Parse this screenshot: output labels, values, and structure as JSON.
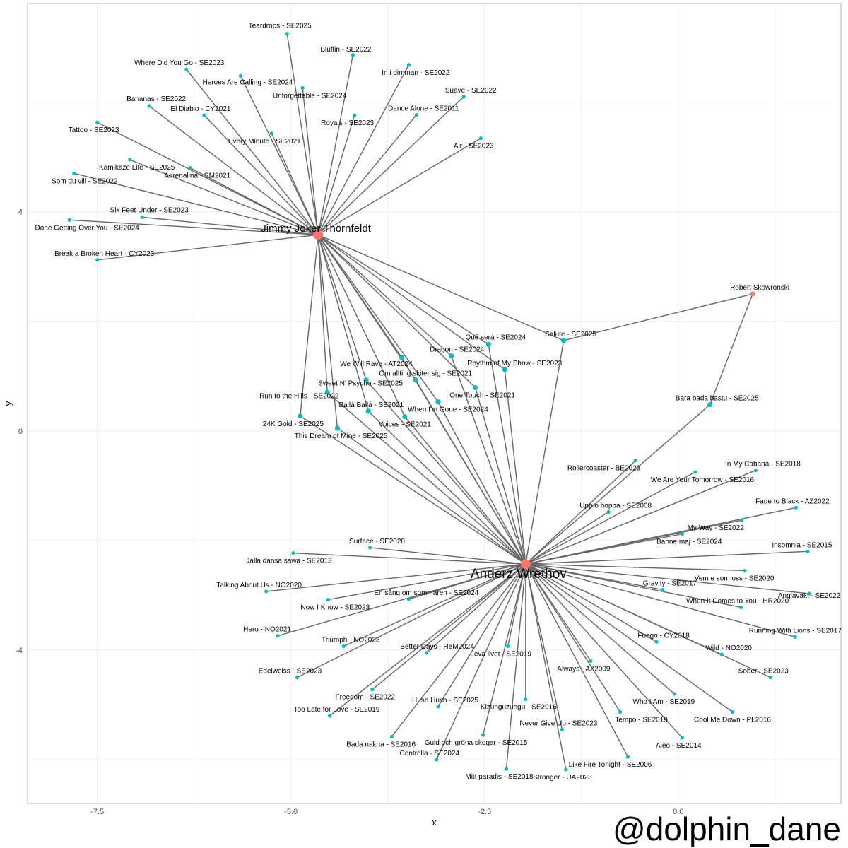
{
  "chart_data": {
    "type": "scatter",
    "subtype": "network graph",
    "title": "",
    "xlabel": "x",
    "ylabel": "y",
    "xlim": [
      -8.4,
      2.1
    ],
    "ylim": [
      -6.8,
      7.8
    ],
    "x_ticks": [
      {
        "value": -7.5,
        "label": "-7.5"
      },
      {
        "value": -5,
        "label": "-5.0"
      },
      {
        "value": -2.5,
        "label": "-2.5"
      },
      {
        "value": 0,
        "label": "0.0"
      }
    ],
    "y_ticks": [
      {
        "value": -4,
        "label": "-4"
      },
      {
        "value": 0,
        "label": "0"
      },
      {
        "value": 4,
        "label": "4"
      }
    ],
    "grid": true,
    "colors": {
      "hub": "#f8766d",
      "song": "#00bfc4",
      "edge": "#666666",
      "grid": "#ebebeb",
      "panel_border": "#b3b3b3"
    },
    "hubs": [
      {
        "id": "JJT",
        "name": "Jimmy Joker Thörnfeldt",
        "x": -4.65,
        "y": 3.58,
        "size": "large",
        "label_dx": -3,
        "label_dy": -4,
        "font": 15
      },
      {
        "id": "AW",
        "name": "Anderz Wrethov",
        "x": -1.97,
        "y": -2.43,
        "size": "large",
        "label_dx": -10,
        "label_dy": 20,
        "font": 19
      },
      {
        "id": "RS",
        "name": "Robert Skowronski",
        "x": 0.96,
        "y": 2.5,
        "size": "small",
        "label_dx": 10,
        "label_dy": -6,
        "font": 10
      }
    ],
    "songs": [
      {
        "label": "Teardrops - SE2025",
        "x": -5.05,
        "y": 7.25,
        "link": [
          "JJT"
        ],
        "label_dx": -10,
        "label_dy": -8
      },
      {
        "label": "Bluffin - SE2022",
        "x": -4.2,
        "y": 6.86,
        "link": [
          "JJT"
        ],
        "label_dx": -10,
        "label_dy": -5
      },
      {
        "label": "In i dimman - SE2022",
        "x": -3.48,
        "y": 6.68,
        "link": [
          "JJT"
        ],
        "label_dx": 10,
        "label_dy": 14
      },
      {
        "label": "Where Did You Go - SE2023",
        "x": -6.35,
        "y": 6.6,
        "link": [
          "JJT"
        ],
        "label_dx": -10,
        "label_dy": -6
      },
      {
        "label": "Heroes Are Calling - SE2024",
        "x": -5.65,
        "y": 6.48,
        "link": [
          "JJT"
        ],
        "label_dx": 10,
        "label_dy": 12
      },
      {
        "label": "Unforgettable - SE2024",
        "x": -4.85,
        "y": 6.26,
        "link": [
          "JJT"
        ],
        "label_dx": 10,
        "label_dy": 14
      },
      {
        "label": "Suave - SE2022",
        "x": -2.77,
        "y": 6.1,
        "link": [
          "JJT"
        ],
        "label_dx": 10,
        "label_dy": -6
      },
      {
        "label": "Bananas - SE2022",
        "x": -6.83,
        "y": 5.93,
        "link": [
          "JJT"
        ],
        "label_dx": 10,
        "label_dy": -7
      },
      {
        "label": "Dance Alone - SE2011",
        "x": -3.38,
        "y": 5.77,
        "link": [
          "JJT"
        ],
        "label_dx": 10,
        "label_dy": -6
      },
      {
        "label": "El Diablo - CY2021",
        "x": -6.12,
        "y": 5.76,
        "link": [
          "JJT"
        ],
        "label_dx": -5,
        "label_dy": -6
      },
      {
        "label": "Royals - SE2023",
        "x": -4.18,
        "y": 5.76,
        "link": [
          "JJT"
        ],
        "label_dx": -10,
        "label_dy": 14
      },
      {
        "label": "Tattoo - SE2023",
        "x": -7.5,
        "y": 5.63,
        "link": [
          "JJT"
        ],
        "label_dx": -5,
        "label_dy": 14
      },
      {
        "label": "Every Minute - SE2021",
        "x": -5.25,
        "y": 5.43,
        "link": [
          "JJT"
        ],
        "label_dx": -10,
        "label_dy": 14
      },
      {
        "label": "Air - SE2023",
        "x": -2.55,
        "y": 5.34,
        "link": [
          "JJT"
        ],
        "label_dx": -10,
        "label_dy": 14
      },
      {
        "label": "Kamikaze Life - SE2025",
        "x": -7.08,
        "y": 4.95,
        "link": [
          "JJT"
        ],
        "label_dx": 10,
        "label_dy": 14
      },
      {
        "label": "Adrenalina - SM2021",
        "x": -6.3,
        "y": 4.8,
        "link": [
          "JJT"
        ],
        "label_dx": 10,
        "label_dy": 14
      },
      {
        "label": "Som du vill - SE2022",
        "x": -7.8,
        "y": 4.7,
        "link": [
          "JJT"
        ],
        "label_dx": 15,
        "label_dy": 14
      },
      {
        "label": "Six Feet Under - SE2023",
        "x": -6.92,
        "y": 3.9,
        "link": [
          "JJT"
        ],
        "label_dx": 10,
        "label_dy": -7
      },
      {
        "label": "Done Getting Over You - SE2024",
        "x": -7.86,
        "y": 3.85,
        "link": [
          "JJT"
        ],
        "label_dx": 25,
        "label_dy": 14
      },
      {
        "label": "Break a Broken Heart - CY2023",
        "x": -7.5,
        "y": 3.12,
        "link": [
          "JJT"
        ],
        "label_dx": 10,
        "label_dy": -6
      },
      {
        "label": "Salute - SE2025",
        "x": -1.48,
        "y": 1.65,
        "link": [
          "JJT",
          "AW",
          "RS"
        ],
        "label_dx": 10,
        "label_dy": -6
      },
      {
        "label": "Bara bada bastu - SE2025",
        "x": 0.41,
        "y": 0.48,
        "link": [
          "AW",
          "RS"
        ],
        "label_dx": 10,
        "label_dy": -6
      },
      {
        "label": "Qué será - SE2024",
        "x": -2.45,
        "y": 1.58,
        "link": [
          "JJT",
          "AW"
        ],
        "label_dx": 10,
        "label_dy": -7
      },
      {
        "label": "Dragon - SE2024",
        "x": -2.93,
        "y": 1.37,
        "link": [
          "JJT",
          "AW"
        ],
        "label_dx": 8,
        "label_dy": -6
      },
      {
        "label": "We Will Rave - AT2024",
        "x": -3.57,
        "y": 1.34,
        "link": [
          "JJT",
          "AW"
        ],
        "label_dx": -36,
        "label_dy": 12
      },
      {
        "label": "Rhythm of My Show - SE2023",
        "x": -2.24,
        "y": 1.12,
        "link": [
          "JJT",
          "AW"
        ],
        "label_dx": 14,
        "label_dy": -6
      },
      {
        "label": "Om allting skiter sig - SE2021",
        "x": -3.39,
        "y": 0.93,
        "link": [
          "JJT",
          "AW"
        ],
        "label_dx": 14,
        "label_dy": -6
      },
      {
        "label": "Sweet N' Psycho - SE2025",
        "x": -4.03,
        "y": 0.93,
        "link": [
          "JJT",
          "AW"
        ],
        "label_dx": -8,
        "label_dy": 8
      },
      {
        "label": "One Touch - SE2021",
        "x": -2.62,
        "y": 0.79,
        "link": [
          "JJT",
          "AW"
        ],
        "label_dx": 10,
        "label_dy": 14
      },
      {
        "label": "Run to the Hills - SE2022",
        "x": -4.53,
        "y": 0.7,
        "link": [
          "JJT",
          "AW"
        ],
        "label_dx": -40,
        "label_dy": 8
      },
      {
        "label": "When I'm Gone - SE2024",
        "x": -3.1,
        "y": 0.53,
        "link": [
          "JJT",
          "AW"
        ],
        "label_dx": 14,
        "label_dy": 14
      },
      {
        "label": "Bailá Bailá - SE2021",
        "x": -4.0,
        "y": 0.36,
        "link": [
          "JJT",
          "AW"
        ],
        "label_dx": 4,
        "label_dy": -6
      },
      {
        "label": "Voices - SE2021",
        "x": -3.53,
        "y": 0.26,
        "link": [
          "JJT",
          "AW"
        ],
        "label_dx": 0,
        "label_dy": 14
      },
      {
        "label": "24K Gold - SE2025",
        "x": -4.88,
        "y": 0.27,
        "link": [
          "JJT",
          "AW"
        ],
        "label_dx": -10,
        "label_dy": 14
      },
      {
        "label": "This Dream of Mine - SE2025",
        "x": -4.4,
        "y": 0.05,
        "link": [
          "JJT",
          "AW"
        ],
        "label_dx": 5,
        "label_dy": 14
      },
      {
        "label": "Rollercoaster - BE2023",
        "x": -0.55,
        "y": -0.54,
        "link": [
          "AW"
        ],
        "label_dx": -45,
        "label_dy": 14
      },
      {
        "label": "In My Cabana - SE2018",
        "x": 1.0,
        "y": -0.72,
        "link": [
          "AW"
        ],
        "label_dx": 10,
        "label_dy": -6
      },
      {
        "label": "We Are Your Tomorrow - SE2016",
        "x": 0.22,
        "y": -0.75,
        "link": [
          "AW"
        ],
        "label_dx": 10,
        "label_dy": 14
      },
      {
        "label": "Fade to Black - AZ2022",
        "x": 1.52,
        "y": -1.4,
        "link": [
          "AW"
        ],
        "label_dx": -5,
        "label_dy": -6
      },
      {
        "label": "Upp o hoppa - SE2008",
        "x": -0.9,
        "y": -1.48,
        "link": [
          "AW"
        ],
        "label_dx": 10,
        "label_dy": -6
      },
      {
        "label": "My Way - SE2022",
        "x": 0.82,
        "y": -1.63,
        "link": [
          "AW"
        ],
        "label_dx": -37,
        "label_dy": 14
      },
      {
        "label": "Banne maj - SE2024",
        "x": 0.05,
        "y": -1.88,
        "link": [
          "AW"
        ],
        "label_dx": 10,
        "label_dy": 14
      },
      {
        "label": "Surface - SE2020",
        "x": -3.98,
        "y": -2.13,
        "link": [
          "AW"
        ],
        "label_dx": 10,
        "label_dy": -6
      },
      {
        "label": "Insomnia - SE2015",
        "x": 1.67,
        "y": -2.2,
        "link": [
          "AW"
        ],
        "label_dx": -8,
        "label_dy": -6
      },
      {
        "label": "Jalla dansa sawa - SE2013",
        "x": -4.97,
        "y": -2.23,
        "link": [
          "AW"
        ],
        "label_dx": -6,
        "label_dy": 14
      },
      {
        "label": "Vem e som oss - SE2020",
        "x": 0.86,
        "y": -2.55,
        "link": [
          "AW"
        ],
        "label_dx": -15,
        "label_dy": 14
      },
      {
        "label": "Gravity - SE2017",
        "x": -0.2,
        "y": -2.9,
        "link": [
          "AW"
        ],
        "label_dx": 10,
        "label_dy": -6
      },
      {
        "label": "Anglavakt - SE2022",
        "x": 1.69,
        "y": -2.97,
        "link": [
          "AW"
        ],
        "label_dx": 0,
        "label_dy": 6
      },
      {
        "label": "Talking About Us - NO2020",
        "x": -5.32,
        "y": -2.93,
        "link": [
          "AW"
        ],
        "label_dx": -10,
        "label_dy": -6
      },
      {
        "label": "En sång om sommaren - SE2024",
        "x": -3.48,
        "y": -3.07,
        "link": [
          "AW"
        ],
        "label_dx": 25,
        "label_dy": -6
      },
      {
        "label": "Now I Know - SE2023",
        "x": -4.52,
        "y": -3.08,
        "link": [
          "AW"
        ],
        "label_dx": 10,
        "label_dy": 14
      },
      {
        "label": "When It Comes to You - HR2020",
        "x": 0.81,
        "y": -3.22,
        "link": [
          "AW"
        ],
        "label_dx": -5,
        "label_dy": -6
      },
      {
        "label": "Hero - NO2021",
        "x": -5.17,
        "y": -3.74,
        "link": [
          "AW"
        ],
        "label_dx": -15,
        "label_dy": -6
      },
      {
        "label": "Running With Lions - SE2017",
        "x": 1.51,
        "y": -3.76,
        "link": [
          "AW"
        ],
        "label_dx": 0,
        "label_dy": -6
      },
      {
        "label": "Fuego - CY2018",
        "x": -0.28,
        "y": -3.85,
        "link": [
          "AW"
        ],
        "label_dx": 10,
        "label_dy": -6
      },
      {
        "label": "Triumph - NO2023",
        "x": -4.32,
        "y": -3.93,
        "link": [
          "AW"
        ],
        "label_dx": 10,
        "label_dy": -6
      },
      {
        "label": "Better Days - HeM2024",
        "x": -3.25,
        "y": -4.05,
        "link": [
          "AW"
        ],
        "label_dx": 15,
        "label_dy": -6
      },
      {
        "label": "Leva livet - SE2019",
        "x": -2.2,
        "y": -3.93,
        "link": [
          "AW"
        ],
        "label_dx": -10,
        "label_dy": 14
      },
      {
        "label": "Wild - NO2020",
        "x": 0.56,
        "y": -4.08,
        "link": [
          "AW"
        ],
        "label_dx": 10,
        "label_dy": -6
      },
      {
        "label": "Always - AZ2009",
        "x": -1.13,
        "y": -4.2,
        "link": [
          "AW"
        ],
        "label_dx": -10,
        "label_dy": 14
      },
      {
        "label": "Sober - SE2023",
        "x": 1.19,
        "y": -4.5,
        "link": [
          "AW"
        ],
        "label_dx": -10,
        "label_dy": -6
      },
      {
        "label": "Edelweiss - SE2023",
        "x": -4.92,
        "y": -4.5,
        "link": [
          "AW"
        ],
        "label_dx": -10,
        "label_dy": -6
      },
      {
        "label": "Freedom - SE2022",
        "x": -3.95,
        "y": -4.72,
        "link": [
          "AW"
        ],
        "label_dx": -10,
        "label_dy": 14
      },
      {
        "label": "Kizunguzungu - SE2016",
        "x": -1.97,
        "y": -4.9,
        "link": [
          "AW"
        ],
        "label_dx": -10,
        "label_dy": 14
      },
      {
        "label": "Who I Am - SE2019",
        "x": -0.05,
        "y": -4.8,
        "link": [
          "AW"
        ],
        "label_dx": -15,
        "label_dy": 14
      },
      {
        "label": "Hush Hush - SE2025",
        "x": -3.1,
        "y": -5.03,
        "link": [
          "AW"
        ],
        "label_dx": 10,
        "label_dy": -6
      },
      {
        "label": "Cool Me Down - PL2016",
        "x": 0.7,
        "y": -5.13,
        "link": [
          "AW"
        ],
        "label_dx": 0,
        "label_dy": 14
      },
      {
        "label": "Too Late for Love - SE2019",
        "x": -4.5,
        "y": -5.2,
        "link": [
          "AW"
        ],
        "label_dx": 10,
        "label_dy": -6
      },
      {
        "label": "Tempo - SE2019",
        "x": -0.75,
        "y": -5.13,
        "link": [
          "AW"
        ],
        "label_dx": 30,
        "label_dy": 14
      },
      {
        "label": "Never Give Up - SE2023",
        "x": -1.5,
        "y": -5.45,
        "link": [
          "AW"
        ],
        "label_dx": -5,
        "label_dy": -6
      },
      {
        "label": "Guld och gröna skogar - SE2015",
        "x": -2.52,
        "y": -5.55,
        "link": [
          "AW"
        ],
        "label_dx": -10,
        "label_dy": 14
      },
      {
        "label": "Aleo - SE2014",
        "x": 0.05,
        "y": -5.6,
        "link": [
          "AW"
        ],
        "label_dx": -5,
        "label_dy": 14
      },
      {
        "label": "Bada nakna - SE2016",
        "x": -3.7,
        "y": -5.58,
        "link": [
          "AW"
        ],
        "label_dx": -15,
        "label_dy": 14
      },
      {
        "label": "Controlla - SE2024",
        "x": -3.12,
        "y": -6.0,
        "link": [
          "AW"
        ],
        "label_dx": -10,
        "label_dy": -6
      },
      {
        "label": "Like Fire Tonight - SE2006",
        "x": -0.65,
        "y": -5.95,
        "link": [
          "AW"
        ],
        "label_dx": -25,
        "label_dy": 14
      },
      {
        "label": "Mitt paradis - SE2018",
        "x": -2.22,
        "y": -6.17,
        "link": [
          "AW"
        ],
        "label_dx": -10,
        "label_dy": 14
      },
      {
        "label": "Stronger - UA2023",
        "x": -1.45,
        "y": -6.18,
        "link": [
          "AW"
        ],
        "label_dx": -5,
        "label_dy": 14
      }
    ]
  },
  "watermark": "@dolphin_dane"
}
